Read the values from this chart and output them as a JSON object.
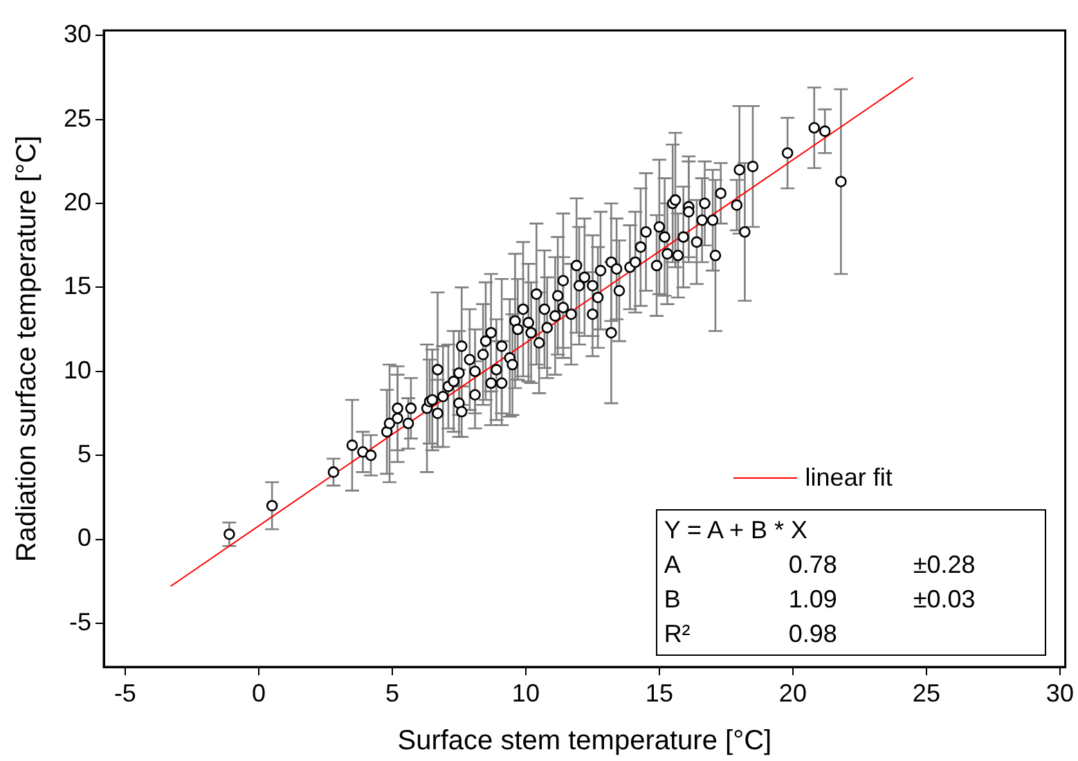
{
  "chart_data": {
    "type": "scatter",
    "xlabel": "Surface stem temperature [°C]",
    "ylabel": "Radiation surface temperature [°C]",
    "xlim": [
      -5.8,
      30.2
    ],
    "xticks": [
      -5,
      0,
      5,
      10,
      15,
      20,
      25,
      30
    ],
    "ylim": [
      -7.6,
      30.3
    ],
    "yticks": [
      -5,
      0,
      5,
      10,
      15,
      20,
      25,
      30
    ],
    "grid": false,
    "legend": "bottom right",
    "annotations": [
      "Y = A + B * X",
      "A  0.78  ±0.28",
      "B  1.09  ±0.03",
      "R²  0.98"
    ],
    "series": [
      {
        "color": "#000000",
        "marker": "circle",
        "x": [
          -1.1,
          0.5,
          2.8,
          3.5,
          3.9,
          4.2,
          4.8,
          4.9,
          5.2,
          5.2,
          5.6,
          5.7,
          6.3,
          6.4,
          6.5,
          6.7,
          6.7,
          6.9,
          7.1,
          7.3,
          7.5,
          7.5,
          7.6,
          7.6,
          7.9,
          8.1,
          8.1,
          8.4,
          8.5,
          8.7,
          8.7,
          8.9,
          9.1,
          9.1,
          9.4,
          9.5,
          9.6,
          9.7,
          9.9,
          10.1,
          10.2,
          10.4,
          10.5,
          10.7,
          10.8,
          11.1,
          11.2,
          11.4,
          11.4,
          11.7,
          11.9,
          12.0,
          12.2,
          12.5,
          12.5,
          12.7,
          12.8,
          13.2,
          13.2,
          13.4,
          13.5,
          13.9,
          14.1,
          14.3,
          14.5,
          14.9,
          15.0,
          15.2,
          15.3,
          15.5,
          15.6,
          15.7,
          15.9,
          16.1,
          16.1,
          16.4,
          16.6,
          16.7,
          17.0,
          17.1,
          17.3,
          17.9,
          18.0,
          18.2,
          18.5,
          19.8,
          20.8,
          21.2,
          21.8
        ],
        "values": [
          0.3,
          2.0,
          4.0,
          5.6,
          5.2,
          5.0,
          6.4,
          6.9,
          7.8,
          7.2,
          6.9,
          7.8,
          7.8,
          8.2,
          8.3,
          10.1,
          7.5,
          8.5,
          9.1,
          9.4,
          9.9,
          8.1,
          7.6,
          11.5,
          10.7,
          8.6,
          10.0,
          11.0,
          11.8,
          12.3,
          9.3,
          10.1,
          9.3,
          11.5,
          10.8,
          10.4,
          13.0,
          12.5,
          13.7,
          12.9,
          12.3,
          14.6,
          11.7,
          13.7,
          12.6,
          13.3,
          14.5,
          13.8,
          15.4,
          13.4,
          16.3,
          15.1,
          15.6,
          15.1,
          13.4,
          14.4,
          16.0,
          12.3,
          16.5,
          16.1,
          14.8,
          16.2,
          16.5,
          17.4,
          18.3,
          16.3,
          18.6,
          18.0,
          17.0,
          20.0,
          20.2,
          16.9,
          18.0,
          19.8,
          19.5,
          17.7,
          19.0,
          20.0,
          19.0,
          16.9,
          20.6,
          19.9,
          22.0,
          18.3,
          22.2,
          23.0,
          24.5,
          24.3,
          21.3
        ],
        "errors": [
          0.7,
          1.4,
          0.8,
          2.7,
          1.2,
          1.2,
          2.5,
          3.5,
          2.5,
          2.6,
          1.5,
          1.8,
          3.8,
          2.5,
          3,
          4.6,
          2,
          3,
          2.5,
          3,
          2.5,
          2,
          1.5,
          3.5,
          3,
          2,
          2.5,
          3,
          3.5,
          3.5,
          2.5,
          3,
          2.5,
          4,
          3.5,
          3,
          4,
          3,
          4,
          3.5,
          3,
          4.2,
          3,
          3.5,
          3,
          3.5,
          3.5,
          3,
          4,
          3,
          4,
          3.5,
          3.5,
          3,
          2.5,
          3,
          3.5,
          4.2,
          3.5,
          3,
          3,
          2.5,
          3,
          3.5,
          3.5,
          3,
          4,
          3.5,
          3,
          3.5,
          4,
          2.5,
          3,
          3,
          3,
          2.5,
          2.5,
          2.5,
          3,
          4.5,
          1.8,
          1.5,
          3.8,
          4.1,
          3.6,
          2.1,
          2.4,
          1.3,
          5.5
        ]
      },
      {
        "type": "line",
        "name": "linear fit",
        "color": "#ff0000",
        "x": [
          -3.3,
          24.5
        ],
        "values": [
          -2.8,
          27.5
        ]
      }
    ]
  }
}
